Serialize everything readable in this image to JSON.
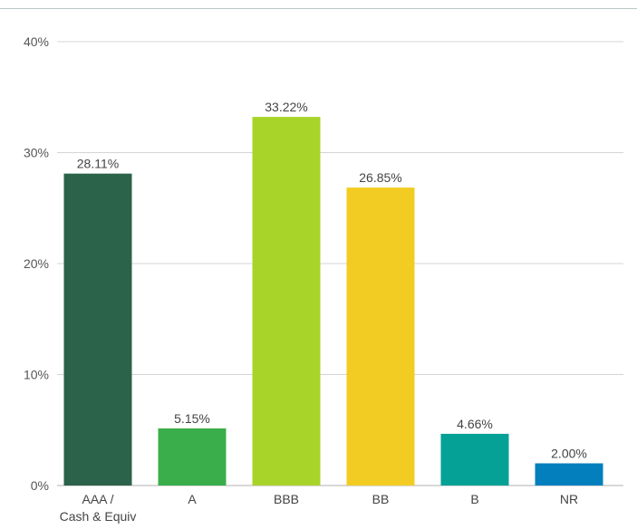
{
  "chart_data": {
    "type": "bar",
    "title": "",
    "xlabel": "",
    "ylabel": "",
    "ylim": [
      0,
      40
    ],
    "yticks": [
      0,
      10,
      20,
      30,
      40
    ],
    "ytick_labels": [
      "0%",
      "10%",
      "20%",
      "30%",
      "40%"
    ],
    "grid": true,
    "categories": [
      [
        "AAA /",
        "Cash & Equiv"
      ],
      [
        "A"
      ],
      [
        "BBB"
      ],
      [
        "BB"
      ],
      [
        "B"
      ],
      [
        "NR"
      ]
    ],
    "values": [
      28.11,
      5.15,
      33.22,
      26.85,
      4.66,
      2.0
    ],
    "value_labels": [
      "28.11%",
      "5.15%",
      "33.22%",
      "26.85%",
      "4.66%",
      "2.00%"
    ],
    "colors": [
      "#2b624a",
      "#3aae4a",
      "#a8d42a",
      "#f2cc22",
      "#05a196",
      "#047fbd"
    ]
  }
}
